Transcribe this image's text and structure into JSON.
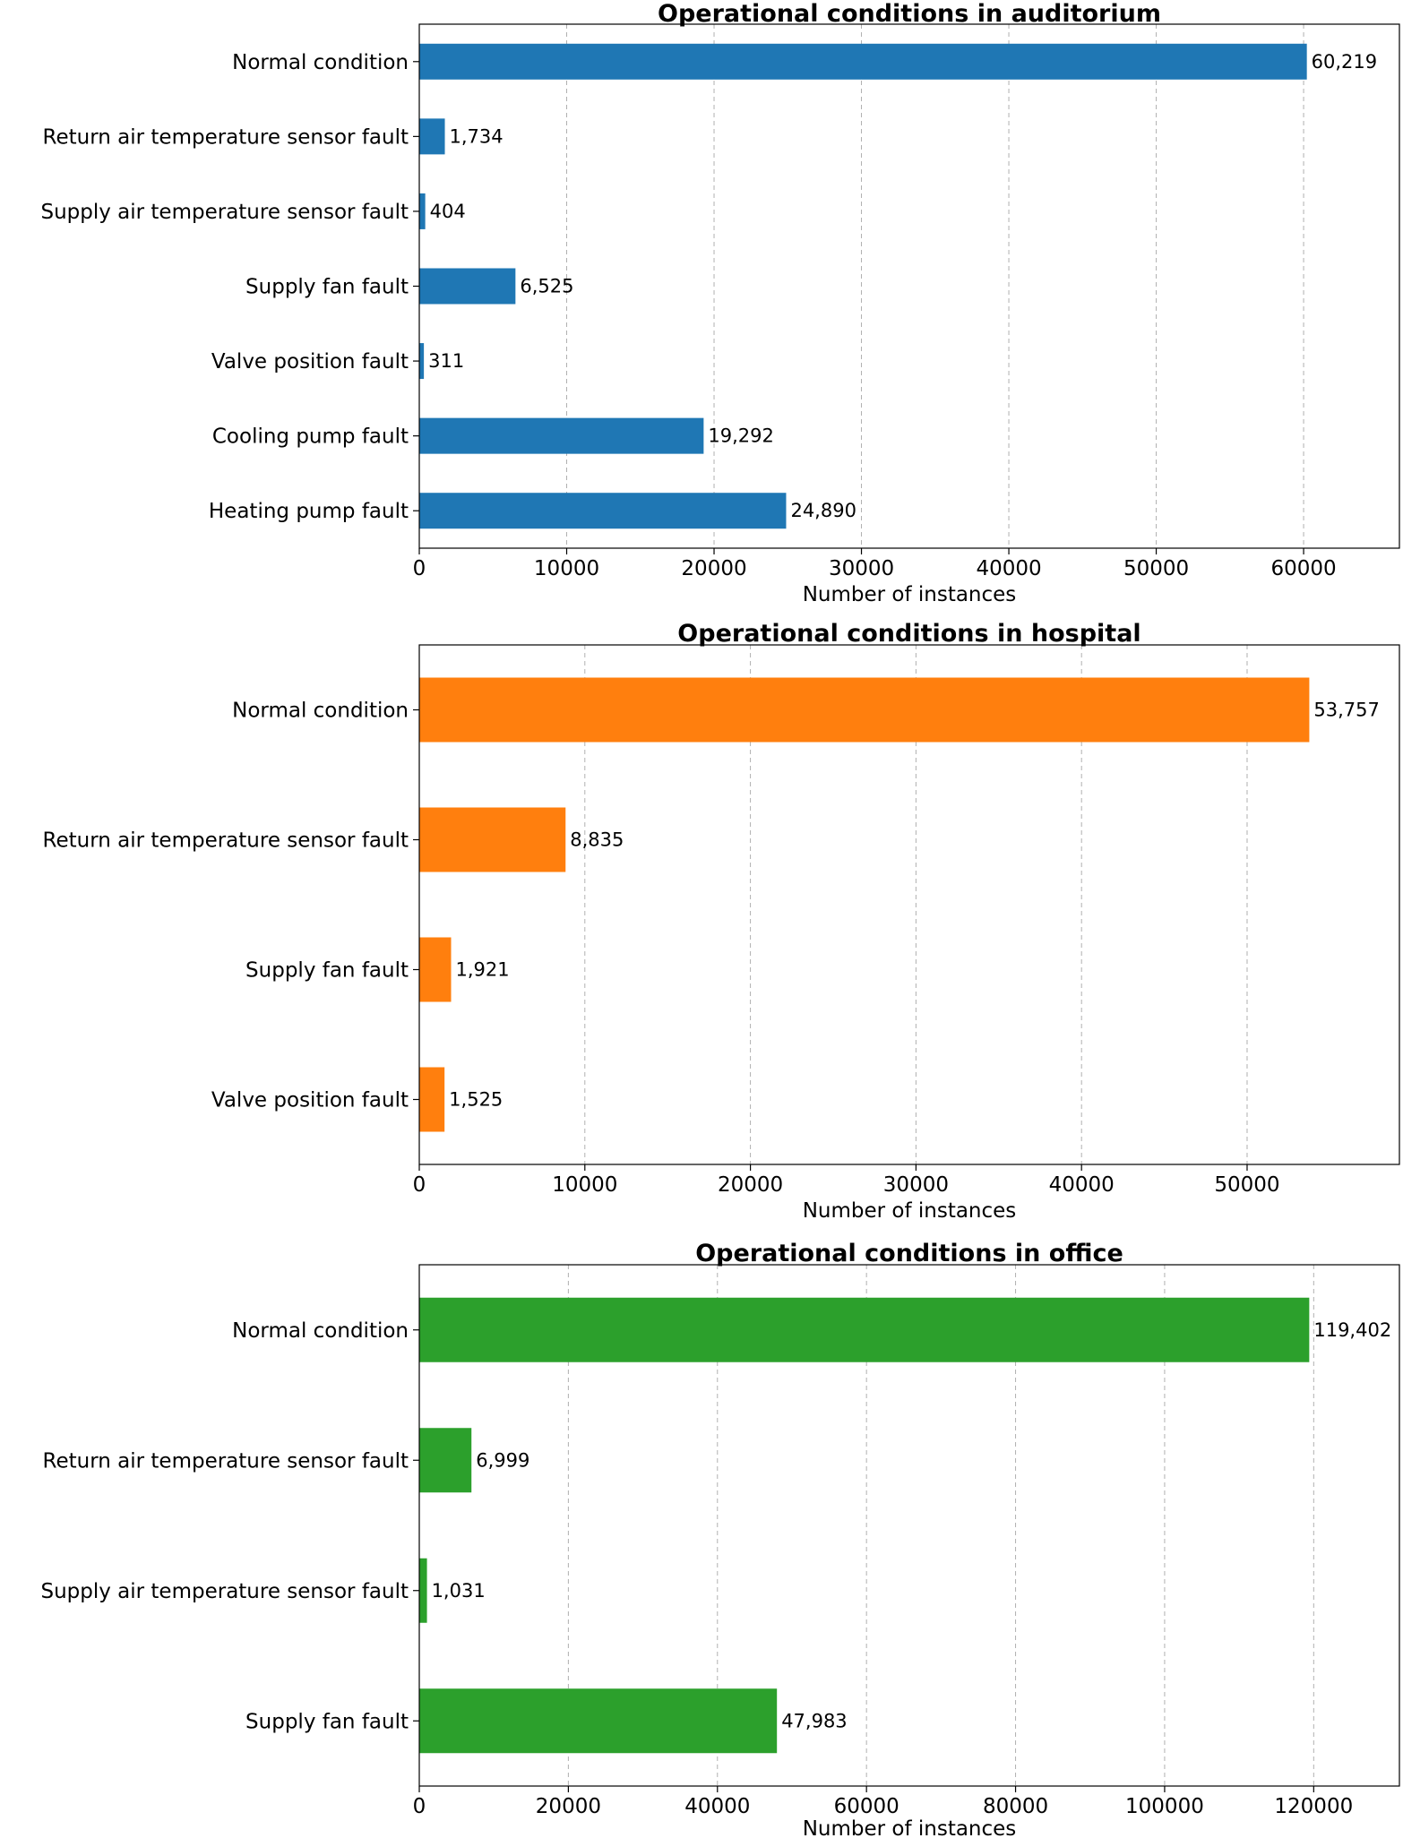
{
  "chart_data": [
    {
      "type": "bar",
      "orientation": "horizontal",
      "title": "Operational conditions in auditorium",
      "xlabel": "Number of instances",
      "ylabel": "",
      "color": "#1f77b4",
      "xlim": [
        0,
        66500
      ],
      "xticks": [
        0,
        10000,
        20000,
        30000,
        40000,
        50000,
        60000
      ],
      "grid": "x-dashed",
      "categories": [
        "Normal condition",
        "Return air temperature sensor fault",
        "Supply air temperature sensor fault",
        "Supply fan fault",
        "Valve position fault",
        "Cooling pump fault",
        "Heating pump fault"
      ],
      "values": [
        60219,
        1734,
        404,
        6525,
        311,
        19292,
        24890
      ],
      "value_labels": [
        "60,219",
        "1,734",
        "404",
        "6,525",
        "311",
        "19,292",
        "24,890"
      ]
    },
    {
      "type": "bar",
      "orientation": "horizontal",
      "title": "Operational conditions in hospital",
      "xlabel": "Number of instances",
      "ylabel": "",
      "color": "#ff7f0e",
      "xlim": [
        0,
        59200
      ],
      "xticks": [
        0,
        10000,
        20000,
        30000,
        40000,
        50000
      ],
      "grid": "x-dashed",
      "categories": [
        "Normal condition",
        "Return air temperature sensor fault",
        "Supply fan fault",
        "Valve position fault"
      ],
      "values": [
        53757,
        8835,
        1921,
        1525
      ],
      "value_labels": [
        "53,757",
        "8,835",
        "1,921",
        "1,525"
      ]
    },
    {
      "type": "bar",
      "orientation": "horizontal",
      "title": "Operational conditions in office",
      "xlabel": "Number of instances",
      "ylabel": "",
      "color": "#2ca02c",
      "xlim": [
        0,
        131500
      ],
      "xticks": [
        0,
        20000,
        40000,
        60000,
        80000,
        100000,
        120000
      ],
      "grid": "x-dashed",
      "categories": [
        "Normal condition",
        "Return air temperature sensor fault",
        "Supply air temperature sensor fault",
        "Supply fan fault"
      ],
      "values": [
        119402,
        6999,
        1031,
        47983
      ],
      "value_labels": [
        "119,402",
        "6,999",
        "1,031",
        "47,983"
      ]
    }
  ]
}
